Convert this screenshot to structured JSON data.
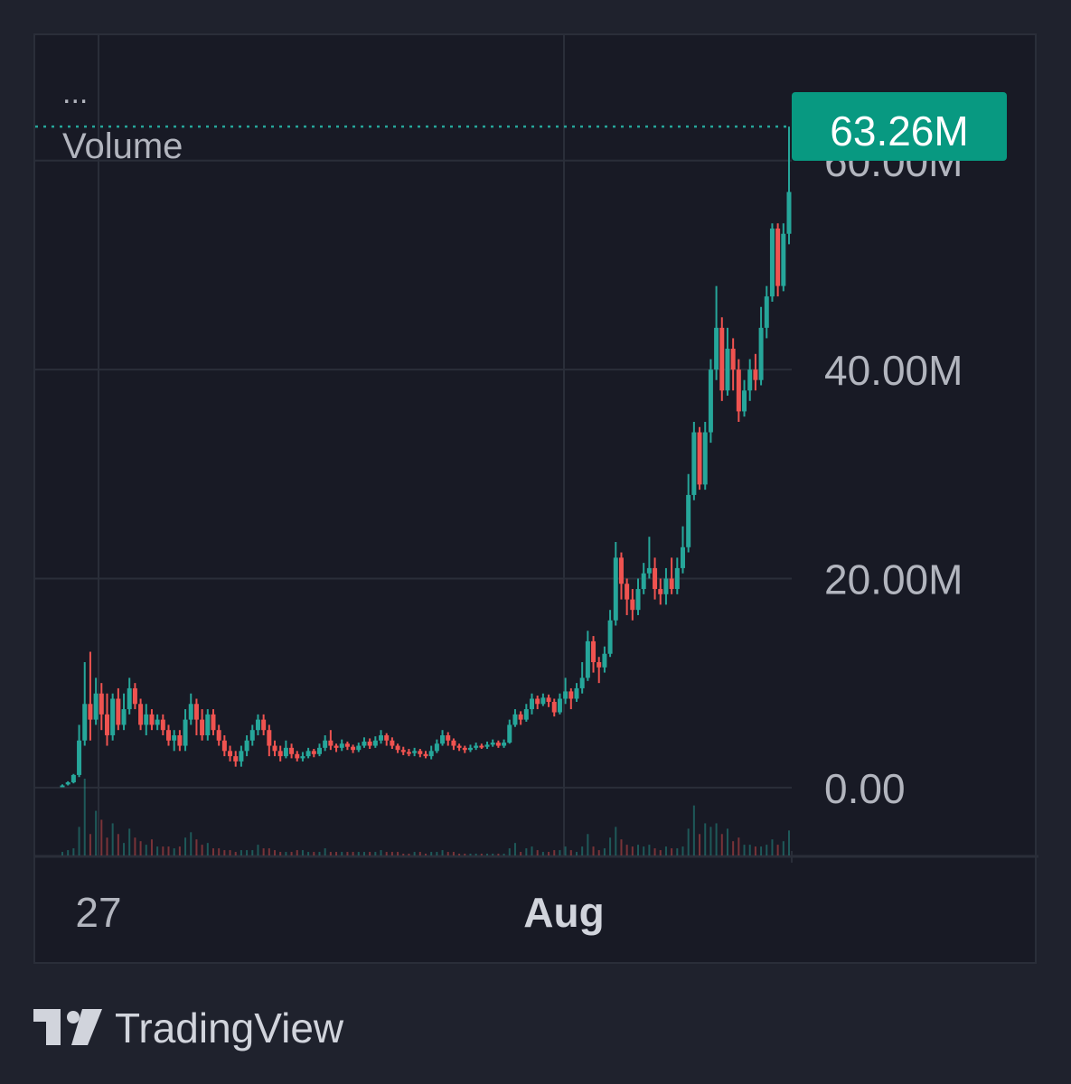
{
  "brand": {
    "name": "TradingView",
    "logo_icon": "tradingview-logo-icon"
  },
  "legend": {
    "menu": "...",
    "title": "Volume"
  },
  "last_value_label": "63.26M",
  "colors": {
    "up": "#26a69a",
    "down": "#ef5350",
    "accent_tag": "#089981",
    "grid": "#2a2e39",
    "text": "#b2b5be"
  },
  "chart_data": {
    "type": "candlestick",
    "title": "Volume",
    "y_axis": {
      "ticks": [
        "0.00",
        "20.00M",
        "40.00M",
        "60.00M"
      ],
      "tick_values": [
        0,
        20,
        40,
        60
      ],
      "unit": "M",
      "ylim": [
        -6.5,
        72
      ]
    },
    "x_axis": {
      "labels": [
        "27",
        "Aug"
      ]
    },
    "last_value": 63.26,
    "grid": true,
    "candles": [
      [
        0.1,
        0.2,
        0.1,
        0.3
      ],
      [
        0.3,
        0.5,
        0.2,
        0.6
      ],
      [
        0.5,
        1.2,
        0.4,
        1.3
      ],
      [
        1.2,
        4.5,
        1.0,
        6.0
      ],
      [
        4.5,
        8.0,
        4.0,
        12.0
      ],
      [
        8.0,
        6.5,
        4.5,
        13.0
      ],
      [
        6.5,
        9.0,
        6.0,
        10.5
      ],
      [
        9.0,
        7.0,
        5.5,
        10.0
      ],
      [
        7.0,
        5.0,
        4.0,
        9.0
      ],
      [
        5.0,
        8.5,
        4.5,
        9.0
      ],
      [
        8.5,
        6.0,
        5.5,
        9.5
      ],
      [
        6.0,
        7.5,
        5.5,
        9.0
      ],
      [
        7.5,
        9.5,
        7.0,
        10.5
      ],
      [
        9.5,
        8.0,
        7.5,
        10.0
      ],
      [
        8.0,
        6.0,
        5.5,
        8.5
      ],
      [
        6.0,
        7.0,
        5.0,
        8.0
      ],
      [
        7.0,
        6.0,
        5.5,
        7.5
      ],
      [
        6.0,
        6.5,
        5.5,
        7.0
      ],
      [
        6.5,
        5.5,
        5.0,
        7.0
      ],
      [
        5.5,
        4.5,
        4.0,
        6.0
      ],
      [
        4.5,
        5.0,
        3.5,
        5.5
      ],
      [
        5.0,
        4.0,
        3.5,
        5.5
      ],
      [
        4.0,
        6.5,
        3.5,
        7.5
      ],
      [
        6.5,
        8.0,
        6.0,
        9.0
      ],
      [
        8.0,
        6.5,
        5.0,
        8.5
      ],
      [
        6.5,
        5.0,
        4.5,
        7.5
      ],
      [
        5.0,
        7.0,
        4.5,
        7.5
      ],
      [
        7.0,
        5.5,
        5.0,
        7.5
      ],
      [
        5.5,
        4.5,
        4.0,
        6.0
      ],
      [
        4.5,
        3.5,
        3.0,
        5.0
      ],
      [
        3.5,
        3.0,
        2.5,
        4.0
      ],
      [
        3.0,
        2.5,
        2.0,
        3.5
      ],
      [
        2.5,
        3.5,
        2.0,
        4.0
      ],
      [
        3.5,
        4.5,
        3.0,
        5.0
      ],
      [
        4.5,
        5.5,
        4.0,
        6.0
      ],
      [
        5.5,
        6.5,
        5.0,
        7.0
      ],
      [
        6.5,
        5.5,
        5.0,
        7.0
      ],
      [
        5.5,
        4.0,
        3.0,
        6.0
      ],
      [
        4.0,
        3.5,
        3.0,
        4.5
      ],
      [
        3.5,
        3.0,
        2.5,
        4.0
      ],
      [
        3.0,
        3.8,
        2.8,
        4.5
      ],
      [
        3.8,
        3.2,
        2.8,
        4.2
      ],
      [
        3.2,
        2.8,
        2.5,
        3.5
      ],
      [
        2.8,
        3.0,
        2.5,
        3.4
      ],
      [
        3.0,
        3.5,
        2.8,
        3.8
      ],
      [
        3.5,
        3.2,
        2.9,
        3.7
      ],
      [
        3.2,
        3.8,
        3.0,
        4.2
      ],
      [
        3.8,
        4.5,
        3.5,
        5.0
      ],
      [
        4.5,
        4.0,
        3.6,
        5.5
      ],
      [
        4.0,
        3.8,
        3.4,
        4.2
      ],
      [
        3.8,
        4.2,
        3.5,
        4.6
      ],
      [
        4.2,
        3.9,
        3.6,
        4.4
      ],
      [
        3.9,
        3.6,
        3.3,
        4.1
      ],
      [
        3.6,
        4.0,
        3.4,
        4.3
      ],
      [
        4.0,
        4.4,
        3.8,
        4.8
      ],
      [
        4.4,
        4.0,
        3.7,
        4.7
      ],
      [
        4.0,
        4.5,
        3.8,
        4.9
      ],
      [
        4.5,
        5.0,
        4.2,
        5.5
      ],
      [
        5.0,
        4.5,
        4.0,
        5.2
      ],
      [
        4.5,
        4.0,
        3.7,
        4.8
      ],
      [
        4.0,
        3.6,
        3.3,
        4.2
      ],
      [
        3.6,
        3.4,
        3.1,
        3.9
      ],
      [
        3.4,
        3.3,
        3.0,
        3.7
      ],
      [
        3.3,
        3.5,
        3.0,
        3.8
      ],
      [
        3.5,
        3.2,
        2.9,
        3.7
      ],
      [
        3.2,
        3.0,
        2.8,
        3.5
      ],
      [
        3.0,
        3.5,
        2.7,
        4.0
      ],
      [
        3.5,
        4.2,
        3.3,
        4.6
      ],
      [
        4.2,
        5.0,
        4.0,
        5.5
      ],
      [
        5.0,
        4.5,
        4.0,
        5.3
      ],
      [
        4.5,
        4.0,
        3.6,
        4.7
      ],
      [
        4.0,
        3.8,
        3.5,
        4.2
      ],
      [
        3.8,
        3.6,
        3.3,
        4.0
      ],
      [
        3.6,
        3.8,
        3.4,
        4.1
      ],
      [
        3.8,
        4.0,
        3.6,
        4.3
      ],
      [
        4.0,
        3.9,
        3.7,
        4.2
      ],
      [
        3.9,
        4.1,
        3.7,
        4.4
      ],
      [
        4.1,
        4.3,
        3.9,
        4.6
      ],
      [
        4.3,
        4.0,
        3.8,
        4.5
      ],
      [
        4.0,
        4.3,
        3.8,
        4.6
      ],
      [
        4.3,
        6.0,
        4.2,
        6.5
      ],
      [
        6.0,
        7.0,
        5.8,
        7.5
      ],
      [
        7.0,
        6.5,
        6.0,
        7.3
      ],
      [
        6.5,
        7.5,
        6.3,
        8.0
      ],
      [
        7.5,
        8.5,
        7.0,
        9.0
      ],
      [
        8.5,
        8.0,
        7.5,
        8.8
      ],
      [
        8.0,
        8.6,
        7.8,
        9.0
      ],
      [
        8.6,
        8.2,
        7.7,
        8.9
      ],
      [
        8.2,
        7.2,
        6.8,
        8.5
      ],
      [
        7.2,
        8.5,
        7.0,
        9.0
      ],
      [
        8.5,
        9.2,
        8.0,
        10.5
      ],
      [
        9.2,
        8.5,
        7.5,
        9.5
      ],
      [
        8.5,
        9.5,
        8.2,
        10.0
      ],
      [
        9.5,
        10.5,
        9.0,
        12.0
      ],
      [
        10.5,
        14.0,
        10.2,
        15.0
      ],
      [
        14.0,
        12.0,
        11.0,
        14.5
      ],
      [
        12.0,
        11.5,
        10.0,
        12.5
      ],
      [
        11.5,
        12.8,
        11.0,
        13.5
      ],
      [
        12.8,
        16.0,
        12.5,
        17.0
      ],
      [
        16.0,
        22.0,
        15.5,
        23.5
      ],
      [
        22.0,
        19.5,
        18.0,
        22.5
      ],
      [
        19.5,
        18.0,
        16.5,
        20.0
      ],
      [
        18.0,
        17.0,
        16.0,
        19.0
      ],
      [
        17.0,
        19.0,
        16.5,
        20.0
      ],
      [
        19.0,
        20.5,
        18.5,
        21.5
      ],
      [
        20.5,
        21.0,
        20.0,
        24.0
      ],
      [
        21.0,
        19.0,
        18.0,
        22.0
      ],
      [
        19.0,
        18.5,
        17.5,
        20.0
      ],
      [
        18.5,
        20.0,
        17.5,
        21.0
      ],
      [
        20.0,
        19.0,
        18.5,
        22.0
      ],
      [
        19.0,
        21.0,
        18.5,
        22.0
      ],
      [
        21.0,
        23.0,
        20.5,
        25.0
      ],
      [
        23.0,
        28.0,
        22.5,
        30.0
      ],
      [
        28.0,
        34.0,
        27.5,
        35.0
      ],
      [
        34.0,
        29.0,
        28.5,
        34.5
      ],
      [
        29.0,
        34.0,
        28.5,
        35.0
      ],
      [
        34.0,
        40.0,
        33.0,
        41.0
      ],
      [
        40.0,
        44.0,
        39.0,
        48.0
      ],
      [
        44.0,
        38.0,
        37.0,
        45.0
      ],
      [
        38.0,
        42.0,
        37.5,
        44.0
      ],
      [
        42.0,
        40.0,
        38.0,
        43.0
      ],
      [
        40.0,
        36.0,
        35.0,
        41.0
      ],
      [
        36.0,
        38.0,
        35.5,
        39.0
      ],
      [
        38.0,
        40.0,
        37.0,
        41.0
      ],
      [
        40.0,
        39.0,
        38.0,
        41.5
      ],
      [
        39.0,
        44.0,
        38.5,
        46.0
      ],
      [
        44.0,
        47.0,
        43.0,
        48.0
      ],
      [
        47.0,
        53.5,
        46.5,
        54.0
      ],
      [
        53.5,
        48.0,
        47.0,
        54.0
      ],
      [
        48.0,
        53.0,
        47.5,
        54.0
      ],
      [
        53.0,
        57.0,
        52.0,
        63.26
      ]
    ],
    "volume": [
      0.2,
      0.3,
      0.4,
      1.6,
      4.3,
      1.2,
      2.5,
      2.0,
      1.0,
      1.8,
      1.2,
      0.7,
      1.5,
      1.0,
      0.8,
      0.6,
      0.9,
      0.5,
      0.5,
      0.5,
      0.4,
      0.5,
      1.0,
      1.3,
      0.9,
      0.6,
      0.7,
      0.4,
      0.4,
      0.3,
      0.3,
      0.2,
      0.3,
      0.3,
      0.3,
      0.6,
      0.4,
      0.4,
      0.3,
      0.2,
      0.2,
      0.2,
      0.3,
      0.3,
      0.2,
      0.2,
      0.2,
      0.4,
      0.2,
      0.2,
      0.2,
      0.2,
      0.2,
      0.2,
      0.2,
      0.2,
      0.2,
      0.3,
      0.2,
      0.2,
      0.2,
      0.1,
      0.1,
      0.2,
      0.2,
      0.1,
      0.2,
      0.2,
      0.3,
      0.2,
      0.2,
      0.1,
      0.1,
      0.1,
      0.1,
      0.1,
      0.1,
      0.1,
      0.1,
      0.1,
      0.4,
      0.7,
      0.2,
      0.4,
      0.5,
      0.3,
      0.2,
      0.2,
      0.3,
      0.3,
      0.5,
      0.3,
      0.2,
      0.5,
      1.2,
      0.5,
      0.3,
      0.4,
      1.0,
      1.6,
      0.9,
      0.6,
      0.5,
      0.6,
      0.5,
      0.6,
      0.4,
      0.3,
      0.5,
      0.4,
      0.4,
      0.5,
      1.5,
      2.8,
      1.2,
      1.8,
      1.6,
      1.8,
      1.2,
      1.5,
      0.8,
      1.0,
      0.6,
      0.6,
      0.5,
      0.5,
      0.6,
      0.9,
      0.6,
      0.8,
      1.4
    ]
  }
}
